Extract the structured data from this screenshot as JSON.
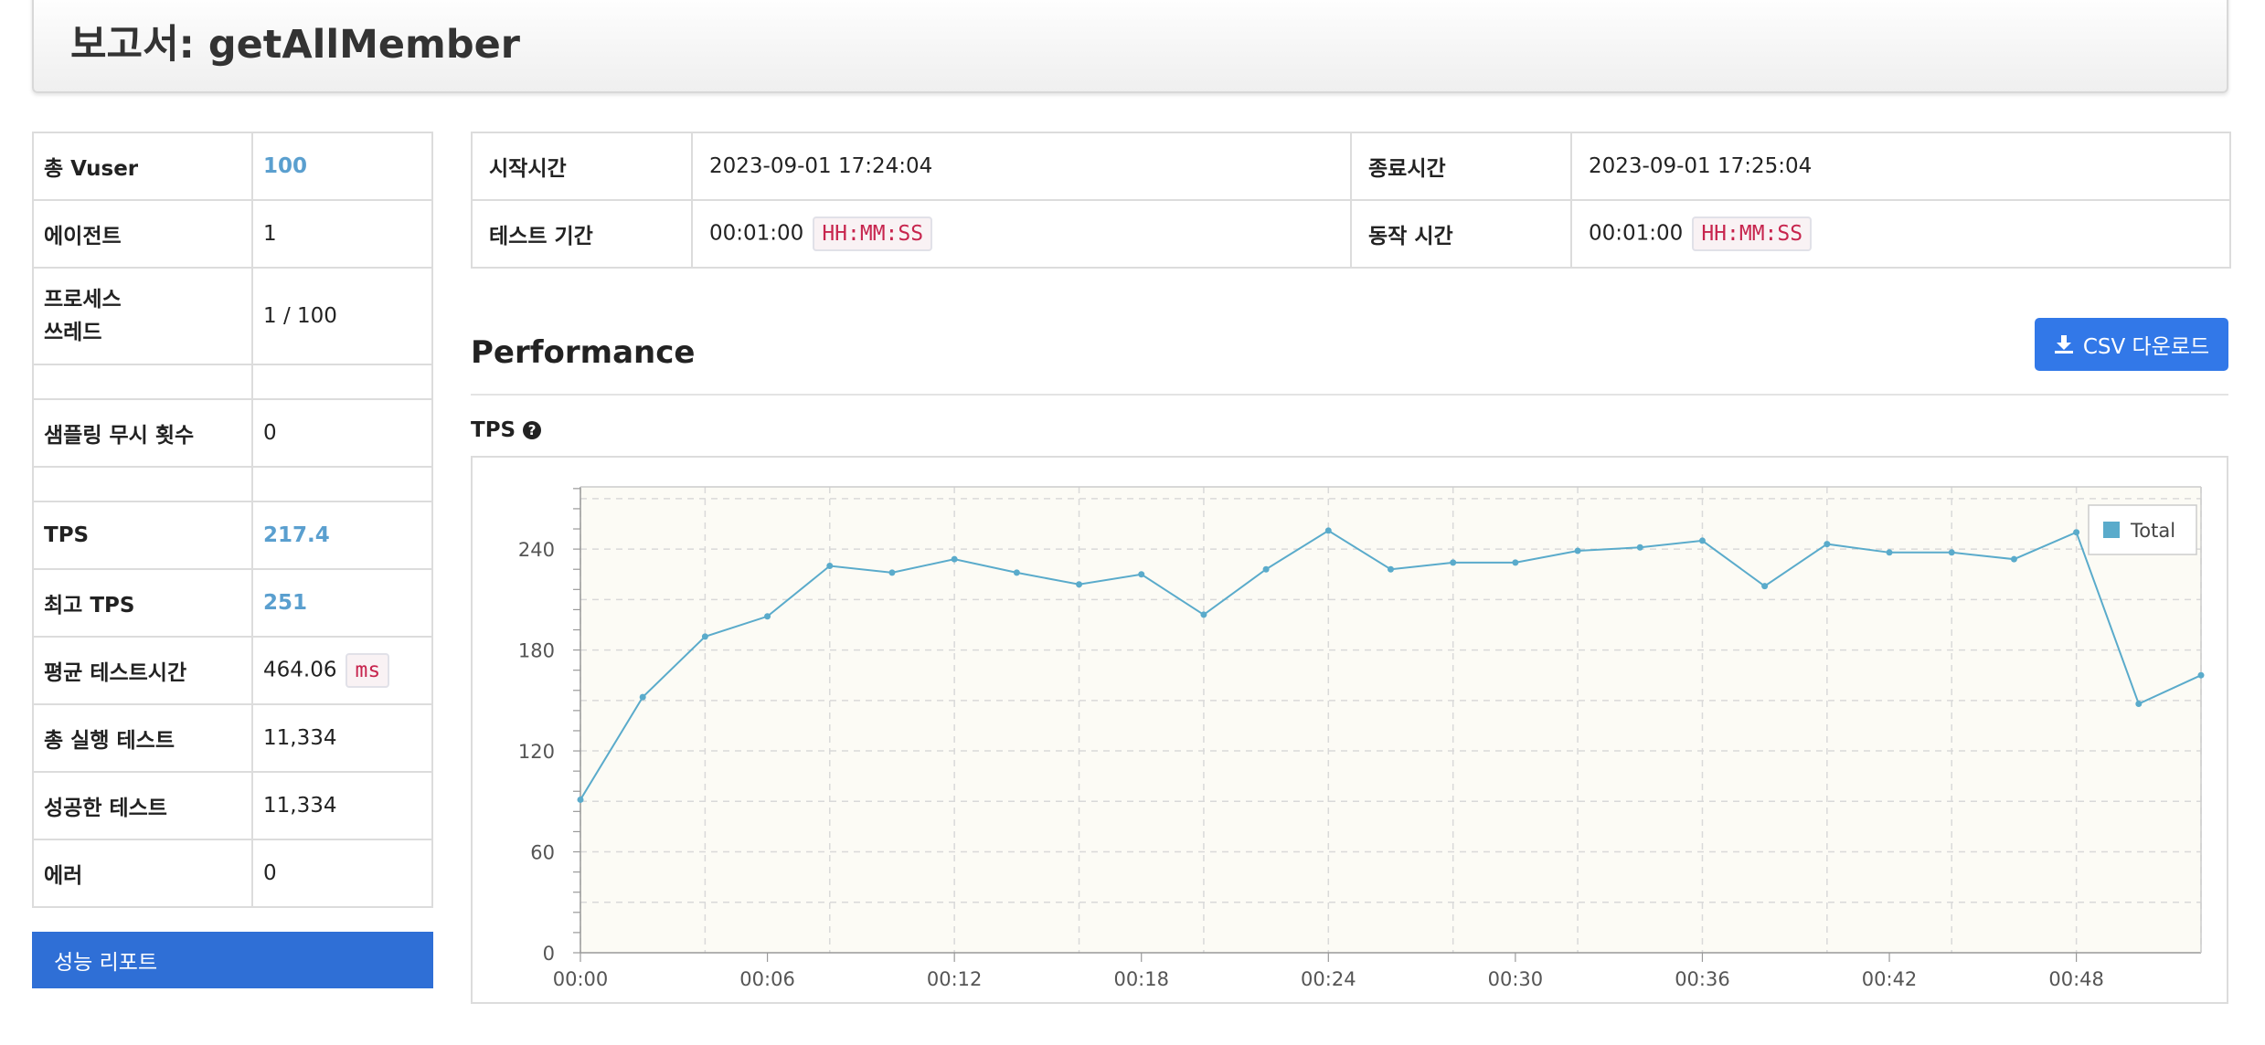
{
  "report": {
    "title": "보고서: getAllMember"
  },
  "summary": [
    {
      "label": "총 Vuser",
      "value": "100",
      "style": "blue"
    },
    {
      "label": "에이전트",
      "value": "1"
    },
    {
      "label": "프로세스\n쓰레드",
      "value": "1 / 100"
    },
    {
      "label": "샘플링 무시 횟수",
      "value": "0"
    },
    {
      "label": "TPS",
      "value": "217.4",
      "style": "blue"
    },
    {
      "label": "최고 TPS",
      "value": "251",
      "style": "blue"
    },
    {
      "label": "평균 테스트시간",
      "value": "464.06",
      "unit": "ms"
    },
    {
      "label": "총 실행 테스트",
      "value": "11,334"
    },
    {
      "label": "성공한 테스트",
      "value": "11,334"
    },
    {
      "label": "에러",
      "value": "0"
    }
  ],
  "performance_report_button": "성능 리포트",
  "test_info": {
    "start_label": "시작시간",
    "start_value": "2023-09-01 17:24:04",
    "end_label": "종료시간",
    "end_value": "2023-09-01 17:25:04",
    "duration_label": "테스트 기간",
    "duration_value": "00:01:00",
    "run_label": "동작 시간",
    "run_value": "00:01:00",
    "time_format": "HH:MM:SS"
  },
  "performance": {
    "title": "Performance",
    "csv_button": "CSV 다운로드",
    "tps_label": "TPS",
    "help_icon": "question-circle-icon"
  },
  "colors": {
    "accent_blue": "#3278e8",
    "series": "#5aabcb",
    "plot_bg": "#fcfbf5"
  },
  "chart_data": {
    "type": "line",
    "x": [
      "00:00",
      "00:02",
      "00:04",
      "00:06",
      "00:08",
      "00:10",
      "00:12",
      "00:14",
      "00:16",
      "00:18",
      "00:20",
      "00:22",
      "00:24",
      "00:26",
      "00:28",
      "00:30",
      "00:32",
      "00:34",
      "00:36",
      "00:38",
      "00:40",
      "00:42",
      "00:44",
      "00:46",
      "00:48",
      "00:50",
      "00:52"
    ],
    "x_tick_labels": [
      "00:00",
      "00:06",
      "00:12",
      "00:18",
      "00:24",
      "00:30",
      "00:36",
      "00:42",
      "00:48"
    ],
    "series": [
      {
        "name": "Total",
        "values": [
          91,
          152,
          188,
          200,
          230,
          226,
          234,
          226,
          219,
          225,
          201,
          228,
          251,
          228,
          232,
          232,
          239,
          241,
          245,
          218,
          243,
          238,
          238,
          234,
          250,
          148,
          165
        ]
      }
    ],
    "y_ticks": [
      0,
      60,
      120,
      180,
      240
    ],
    "ylim": [
      0,
      277
    ],
    "grid": true,
    "legend": "top-right"
  }
}
